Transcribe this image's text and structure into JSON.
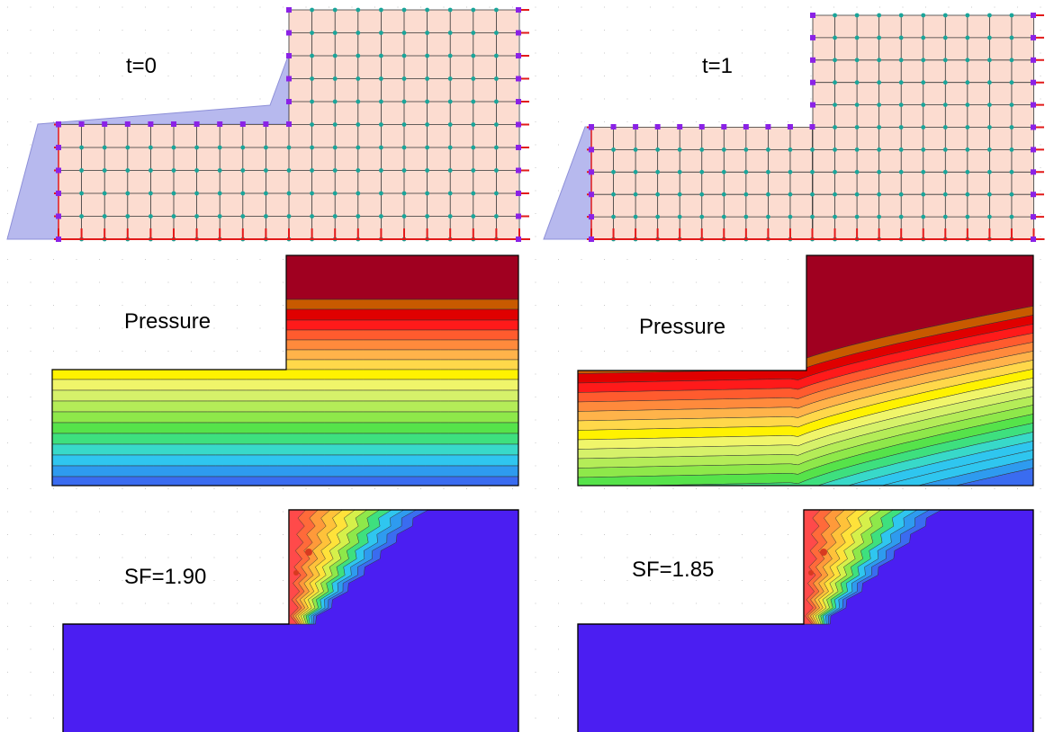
{
  "panels": {
    "mesh_t0": {
      "label": "t=0"
    },
    "mesh_t1": {
      "label": "t=1"
    },
    "pressure_t0": {
      "label": "Pressure"
    },
    "pressure_t1": {
      "label": "Pressure"
    },
    "safety_t0": {
      "label": "SF=1.90"
    },
    "safety_t1": {
      "label": "SF=1.85"
    }
  },
  "colors": {
    "soil_fill": "#fcdcd0",
    "water_fill": "#b7b9ee",
    "mesh_line": "#333333",
    "node": "#1aa59a",
    "boundary_node": "#8b22e6",
    "boundary_line": "#e21a1a",
    "stable_region": "#4b1ef2",
    "pressure_bands": [
      "#4b1ef2",
      "#3a6cf0",
      "#2e9bef",
      "#2fc6ef",
      "#38d9c9",
      "#3ee07e",
      "#56e34a",
      "#8ee84a",
      "#b4ec58",
      "#d6f16a",
      "#f0f56a",
      "#fff200",
      "#ffd84a",
      "#ffb34a",
      "#ff8a3c",
      "#ff5b2e",
      "#ff1a1a",
      "#e00000",
      "#c85a00",
      "#a00020"
    ]
  }
}
